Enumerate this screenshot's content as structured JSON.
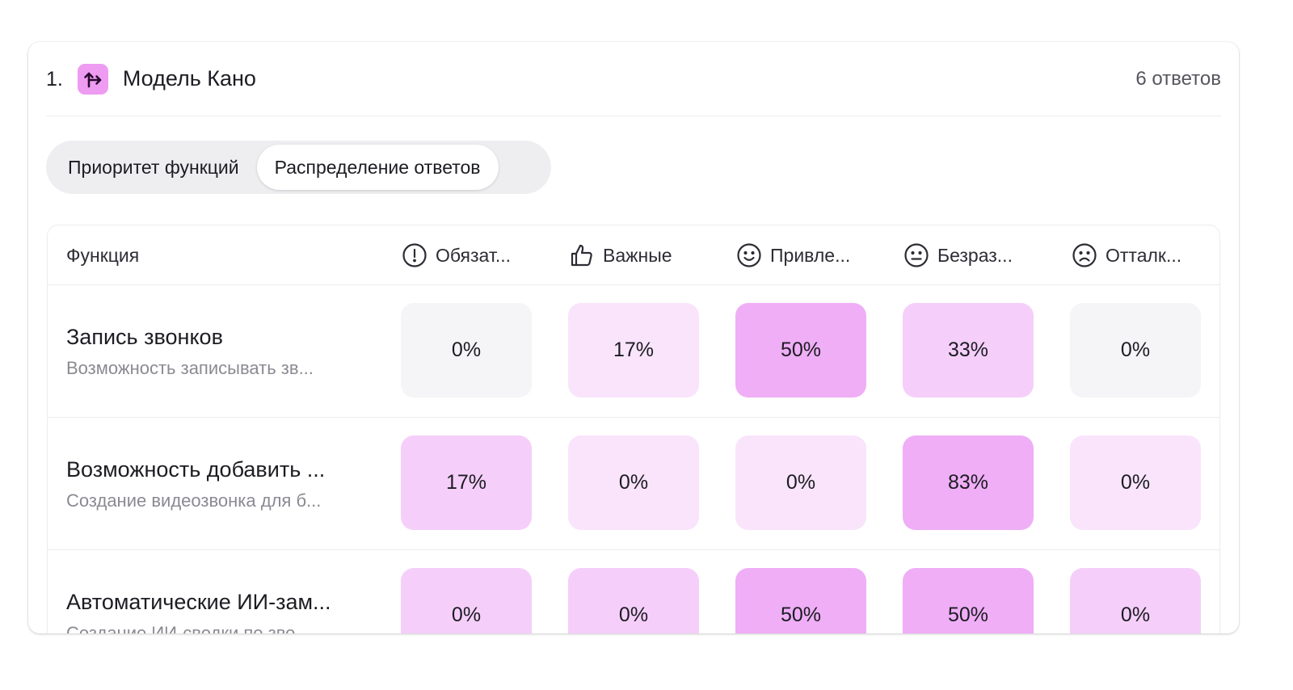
{
  "question": {
    "number": "1.",
    "icon": "kano-model-icon",
    "title": "Модель Кано",
    "responses": "6 ответов"
  },
  "tabs": [
    {
      "label": "Приоритет функций",
      "active": false
    },
    {
      "label": "Распределение ответов",
      "active": true
    }
  ],
  "table": {
    "function_header": "Функция",
    "columns": [
      {
        "label": "Обязат...",
        "icon": "alert-circle-icon"
      },
      {
        "label": "Важные",
        "icon": "thumbs-up-icon"
      },
      {
        "label": "Привле...",
        "icon": "smile-icon"
      },
      {
        "label": "Безраз...",
        "icon": "neutral-face-icon"
      },
      {
        "label": "Отталк...",
        "icon": "frown-icon"
      }
    ],
    "rows": [
      {
        "title": "Запись звонков",
        "description": "Возможность записывать зв...",
        "values": [
          "0%",
          "17%",
          "50%",
          "33%",
          "0%"
        ],
        "shades": [
          "#f5f5f7",
          "#f9e4fb",
          "#efaef6",
          "#f5cffa",
          "#f5f5f7"
        ]
      },
      {
        "title": "Возможность добавить ...",
        "description": "Создание видеозвонка для б...",
        "values": [
          "17%",
          "0%",
          "0%",
          "83%",
          "0%"
        ],
        "shades": [
          "#f5cffa",
          "#f9e4fb",
          "#f9e4fb",
          "#efaef6",
          "#f9e4fb"
        ]
      },
      {
        "title": "Автоматические ИИ-зам...",
        "description": "Создание ИИ-сводки по зво...",
        "values": [
          "0%",
          "0%",
          "50%",
          "50%",
          "0%"
        ],
        "shades": [
          "#f5cffa",
          "#f5cffa",
          "#efaef6",
          "#efaef6",
          "#f5cffa"
        ]
      }
    ]
  },
  "colors": {
    "accent": "#ee9cf2",
    "border": "#ececf0",
    "segment_bg": "#eeeef1"
  }
}
